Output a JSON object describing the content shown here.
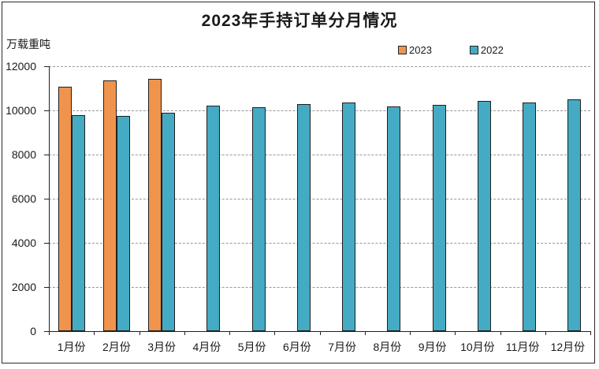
{
  "window": {
    "background": "#ffffff",
    "frame_border_color": "#2a2a2a"
  },
  "legend": {
    "items": [
      {
        "label": "2023",
        "color": "#F0944D"
      },
      {
        "label": "2022",
        "color": "#45AAC3"
      }
    ]
  },
  "chart_data": {
    "type": "bar",
    "title": "2023年手持订单分月情况",
    "xlabel": "",
    "ylabel": "万载重吨",
    "categories": [
      "1月份",
      "2月份",
      "3月份",
      "4月份",
      "5月份",
      "6月份",
      "7月份",
      "8月份",
      "9月份",
      "10月份",
      "11月份",
      "12月份"
    ],
    "series": [
      {
        "name": "2023",
        "color": "#F0944D",
        "values": [
          11080,
          11350,
          11440,
          null,
          null,
          null,
          null,
          null,
          null,
          null,
          null,
          null
        ]
      },
      {
        "name": "2022",
        "color": "#45AAC3",
        "values": [
          9800,
          9740,
          9880,
          10200,
          10150,
          10270,
          10360,
          10190,
          10250,
          10420,
          10360,
          10510
        ]
      }
    ],
    "ylim": [
      0,
      12000
    ],
    "ytick_step": 2000,
    "yticks": [
      0,
      2000,
      4000,
      6000,
      8000,
      10000,
      12000
    ],
    "grid": true,
    "gridline_color": "#999999",
    "bar_border_color": "#1f1f1f",
    "legend_position": "top-right"
  }
}
